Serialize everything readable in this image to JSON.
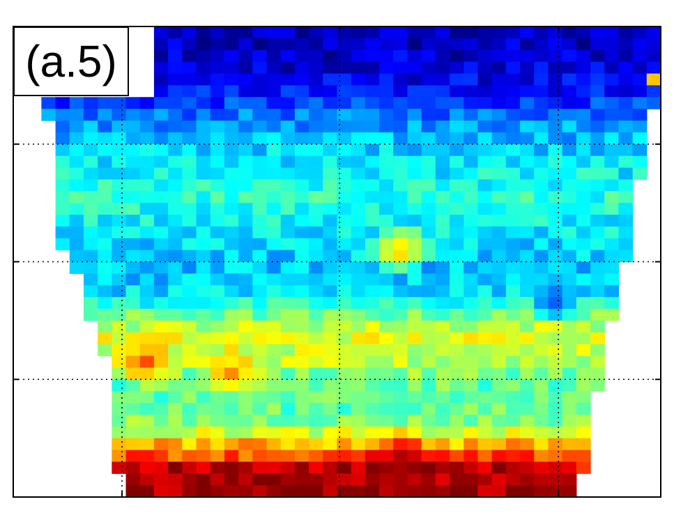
{
  "panel_label": "(a.5)",
  "chart_data": {
    "type": "heatmap",
    "title": "",
    "xlabel": "",
    "ylabel": "",
    "colormap": "jet",
    "grid": true,
    "grid_style": "dotted",
    "tick_labels_shown": false,
    "value_range": [
      0,
      1
    ],
    "n_cols": 46,
    "n_rows": 40,
    "row_profile": [
      0.06,
      0.07,
      0.08,
      0.09,
      0.11,
      0.14,
      0.18,
      0.24,
      0.28,
      0.31,
      0.34,
      0.36,
      0.37,
      0.39,
      0.41,
      0.4,
      0.38,
      0.36,
      0.34,
      0.33,
      0.32,
      0.33,
      0.35,
      0.4,
      0.48,
      0.56,
      0.6,
      0.58,
      0.55,
      0.5,
      0.47,
      0.46,
      0.47,
      0.5,
      0.58,
      0.7,
      0.8,
      0.95,
      0.97,
      0.97
    ],
    "hotspots": [
      {
        "col": 27,
        "row": 18.5,
        "radius": 2.5,
        "value": 0.72
      },
      {
        "col": 9,
        "row": 28,
        "radius": 2.5,
        "value": 0.8
      },
      {
        "col": 15,
        "row": 29,
        "radius": 2.5,
        "value": 0.74
      },
      {
        "col": 27,
        "row": 36.5,
        "radius": 2.8,
        "value": 0.98
      },
      {
        "col": 40,
        "row": 37,
        "radius": 2.0,
        "value": 0.82
      },
      {
        "col": 9,
        "row": 36.5,
        "radius": 1.8,
        "value": 0.86
      },
      {
        "col": 38,
        "row": 23,
        "radius": 2.0,
        "value": 0.22
      },
      {
        "col": 45,
        "row": 4,
        "radius": 1.0,
        "value": 0.68
      }
    ],
    "valid_region_per_row": [
      [
        10,
        45
      ],
      [
        10,
        45
      ],
      [
        10,
        45
      ],
      [
        10,
        45
      ],
      [
        10,
        45
      ],
      [
        10,
        45
      ],
      [
        2,
        45
      ],
      [
        2,
        44
      ],
      [
        3,
        44
      ],
      [
        3,
        44
      ],
      [
        3,
        44
      ],
      [
        3,
        44
      ],
      [
        3,
        44
      ],
      [
        3,
        43
      ],
      [
        3,
        43
      ],
      [
        3,
        43
      ],
      [
        3,
        43
      ],
      [
        3,
        43
      ],
      [
        3,
        43
      ],
      [
        4,
        43
      ],
      [
        4,
        42
      ],
      [
        5,
        42
      ],
      [
        5,
        42
      ],
      [
        5,
        42
      ],
      [
        5,
        42
      ],
      [
        6,
        41
      ],
      [
        6,
        41
      ],
      [
        6,
        41
      ],
      [
        7,
        41
      ],
      [
        7,
        41
      ],
      [
        7,
        41
      ],
      [
        7,
        40
      ],
      [
        7,
        40
      ],
      [
        7,
        40
      ],
      [
        7,
        40
      ],
      [
        7,
        40
      ],
      [
        7,
        40
      ],
      [
        7,
        40
      ],
      [
        8,
        39
      ],
      [
        8,
        39
      ]
    ]
  }
}
